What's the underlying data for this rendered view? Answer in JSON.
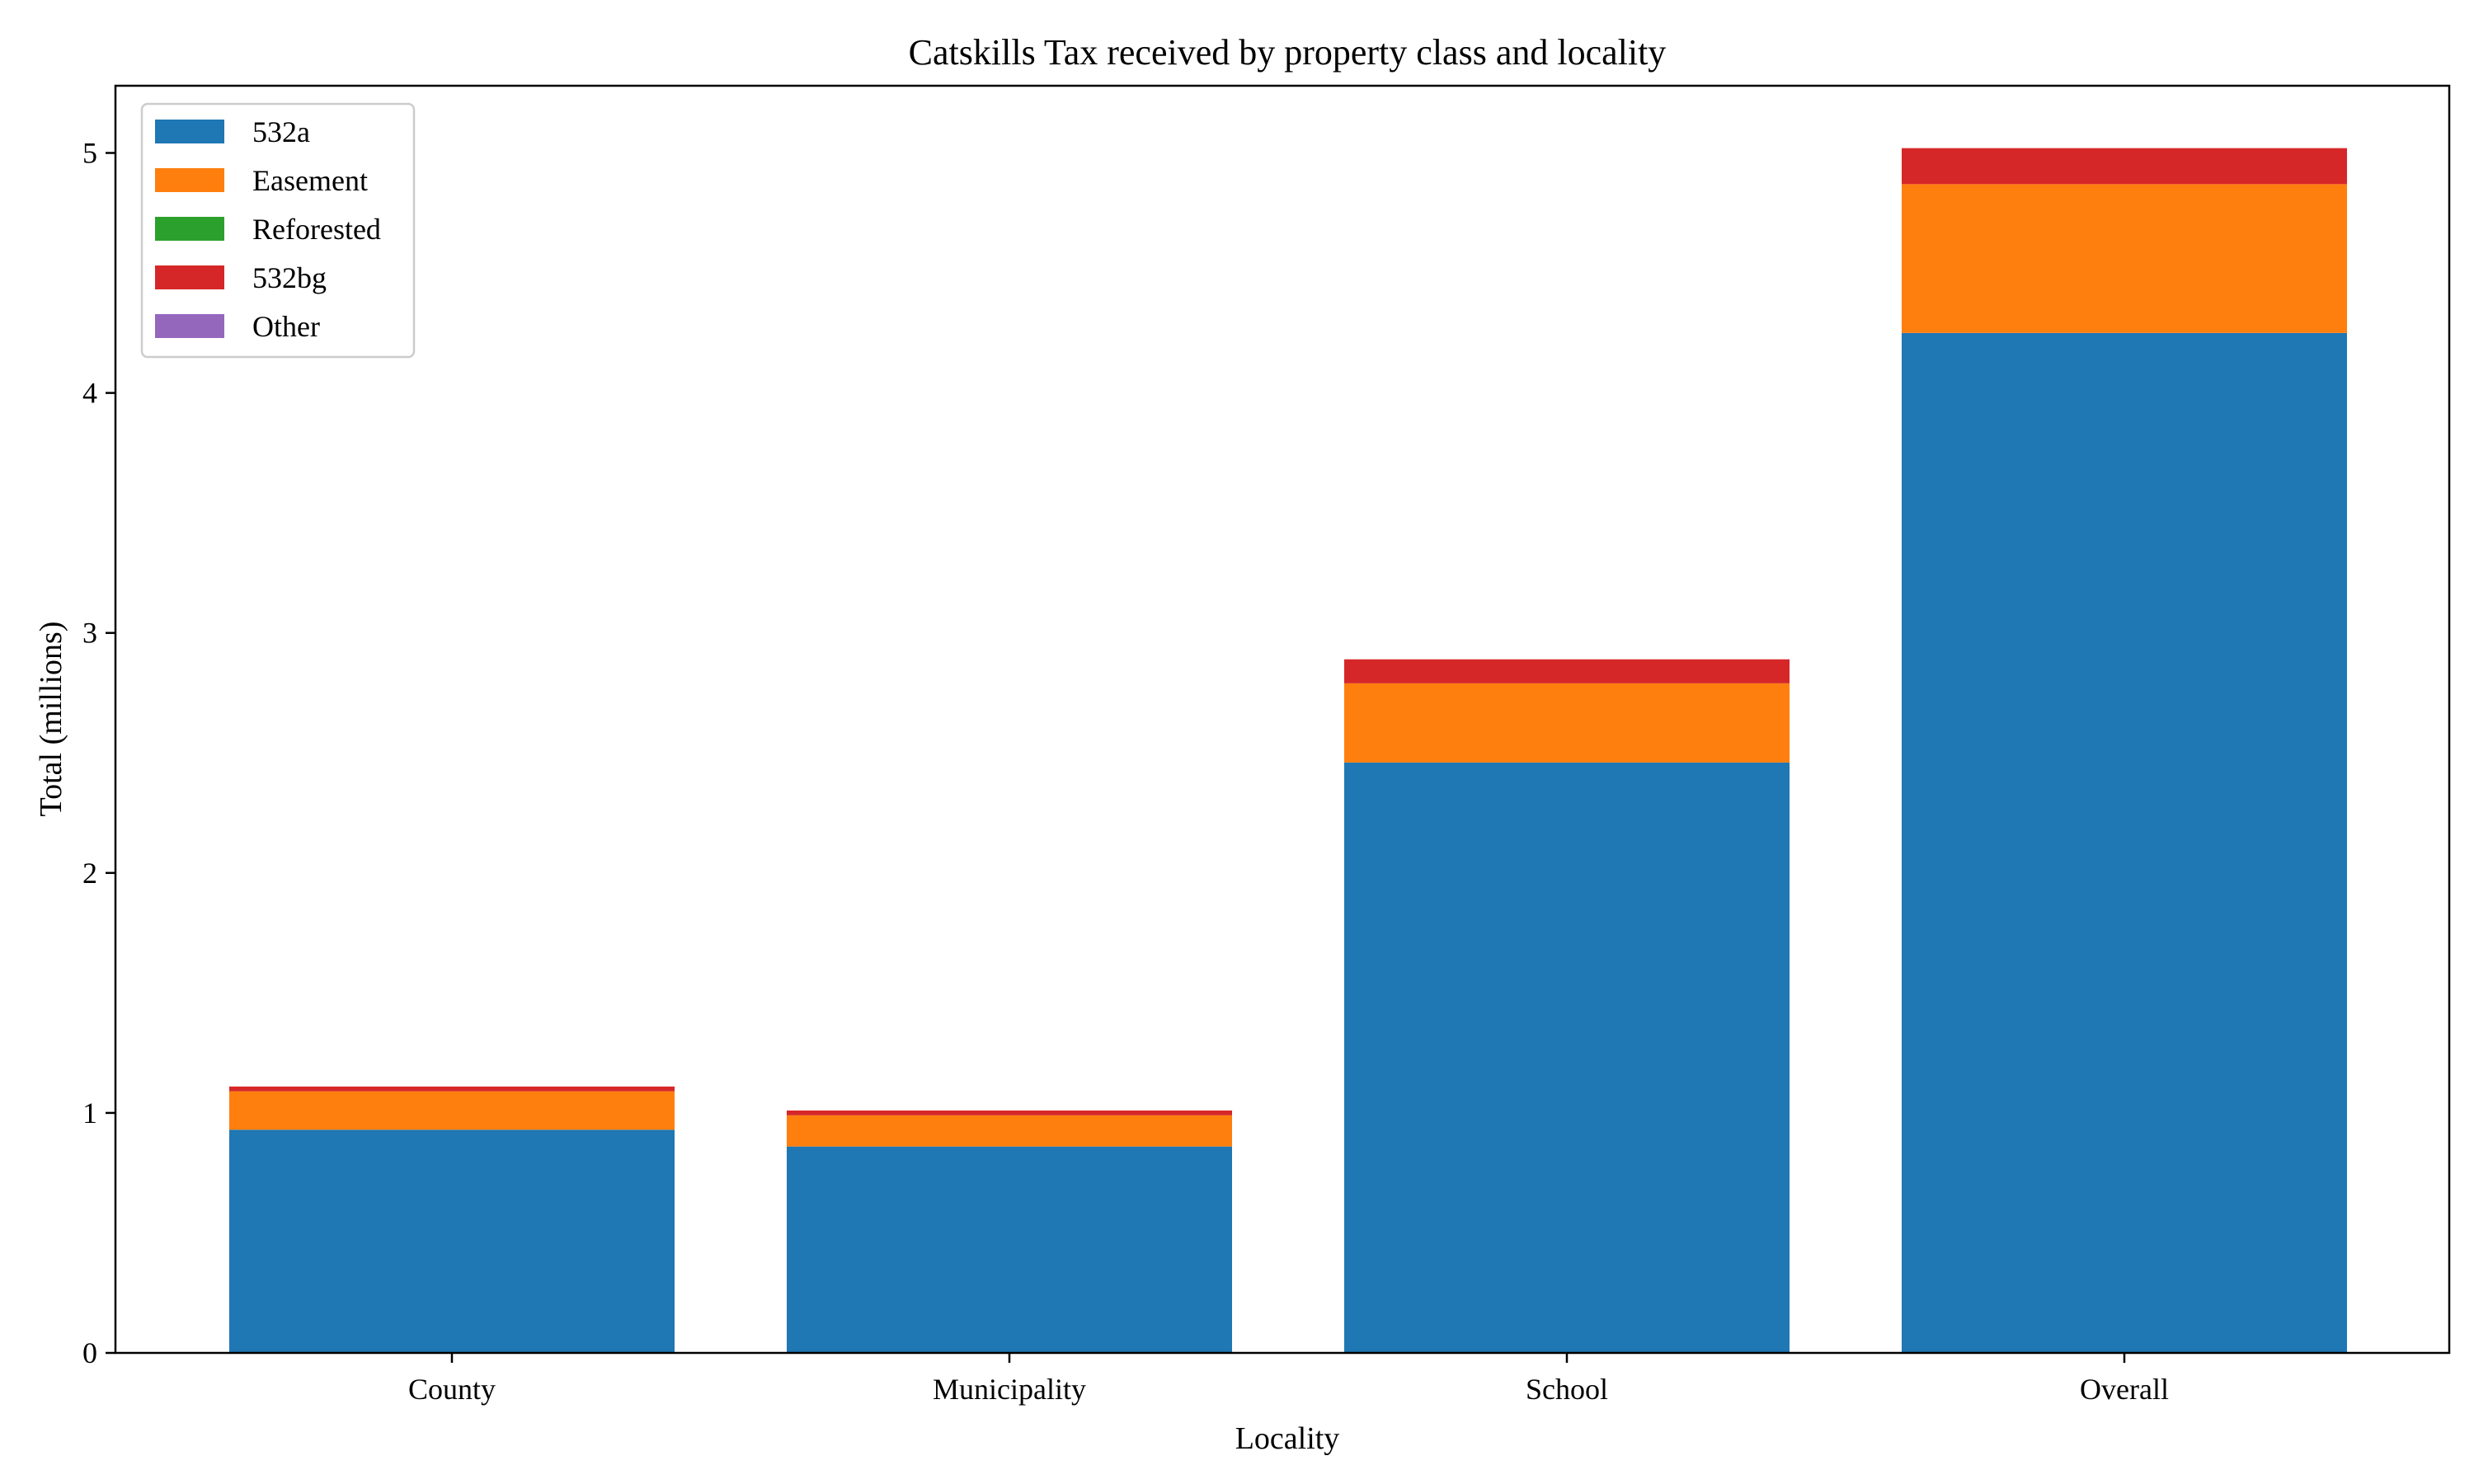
{
  "chart_data": {
    "type": "bar",
    "stacked": true,
    "title": "Catskills Tax received by property class and locality",
    "xlabel": "Locality",
    "ylabel": "Total (millions)",
    "categories": [
      "County",
      "Municipality",
      "School",
      "Overall"
    ],
    "series": [
      {
        "name": "532a",
        "color": "#1f77b4",
        "values": [
          0.93,
          0.86,
          2.46,
          4.25
        ]
      },
      {
        "name": "Easement",
        "color": "#ff7f0e",
        "values": [
          0.16,
          0.13,
          0.33,
          0.62
        ]
      },
      {
        "name": "Reforested",
        "color": "#2ca02c",
        "values": [
          0.0,
          0.0,
          0.0,
          0.0
        ]
      },
      {
        "name": "532bg",
        "color": "#d62728",
        "values": [
          0.02,
          0.02,
          0.1,
          0.15
        ]
      },
      {
        "name": "Other",
        "color": "#9467bd",
        "values": [
          0.0,
          0.0,
          0.0,
          0.0
        ]
      }
    ],
    "ylim": [
      0,
      5.28
    ],
    "yticks": [
      0,
      1,
      2,
      3,
      4,
      5
    ],
    "grid": false,
    "legend_position": "upper-left"
  }
}
